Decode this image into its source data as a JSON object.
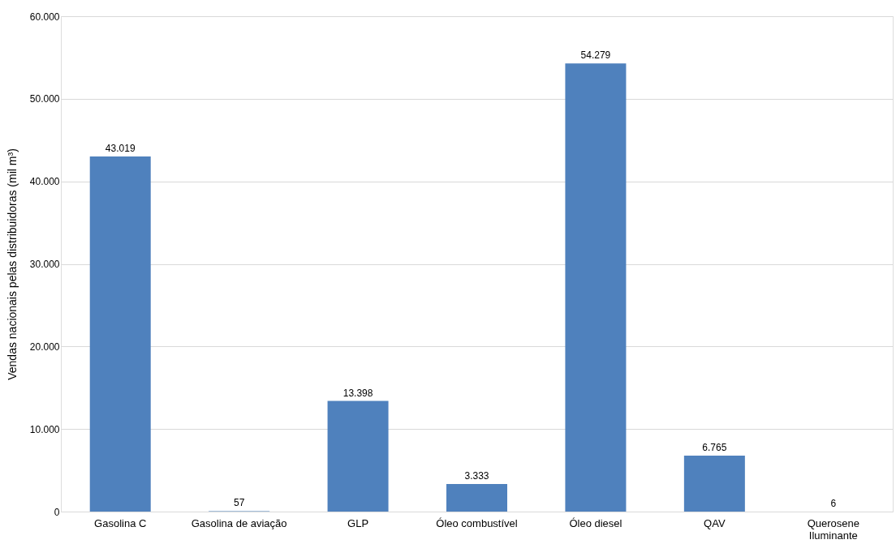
{
  "chart_data": {
    "type": "bar",
    "ylabel": "Vendas nacionais pelas distribuidoras (mil m³)",
    "categories": [
      "Gasolina C",
      "Gasolina de aviação",
      "GLP",
      "Óleo combustível",
      "Óleo diesel",
      "QAV",
      "Querosene Iluminante"
    ],
    "values": [
      43019,
      57,
      13398,
      3333,
      54279,
      6765,
      6
    ],
    "value_labels": [
      "43.019",
      "57",
      "13.398",
      "3.333",
      "54.279",
      "6.765",
      "6"
    ],
    "color": "#4f81bd",
    "ylim": [
      0,
      60000
    ],
    "yticks": [
      {
        "value": 0,
        "label": "0"
      },
      {
        "value": 10000,
        "label": "10.000"
      },
      {
        "value": 20000,
        "label": "20.000"
      },
      {
        "value": 30000,
        "label": "30.000"
      },
      {
        "value": 40000,
        "label": "40.000"
      },
      {
        "value": 50000,
        "label": "50.000"
      },
      {
        "value": 60000,
        "label": "60.000"
      }
    ],
    "grid": "y"
  }
}
